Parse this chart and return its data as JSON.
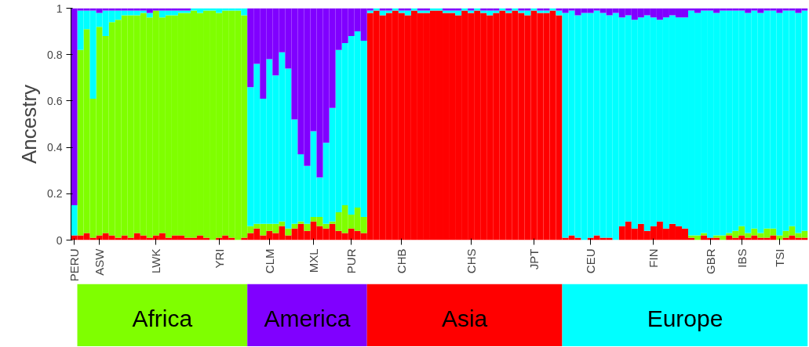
{
  "chart_data": {
    "type": "bar",
    "stacked": true,
    "ylabel": "Ancestry",
    "grid": false,
    "categories": [
      "PERU",
      null,
      null,
      null,
      "ASW",
      null,
      null,
      null,
      null,
      null,
      null,
      null,
      null,
      "LWK",
      null,
      null,
      null,
      null,
      null,
      null,
      null,
      null,
      null,
      "YRI",
      null,
      null,
      null,
      null,
      null,
      null,
      null,
      "CLM",
      null,
      null,
      null,
      null,
      null,
      null,
      "MXL",
      null,
      null,
      null,
      null,
      null,
      "PUR",
      null,
      null,
      null,
      null,
      null,
      null,
      null,
      "CHB",
      null,
      null,
      null,
      null,
      null,
      null,
      null,
      null,
      null,
      null,
      "CHS",
      null,
      null,
      null,
      null,
      null,
      null,
      null,
      null,
      null,
      "JPT",
      null,
      null,
      null,
      null,
      null,
      null,
      null,
      null,
      "CEU",
      null,
      null,
      null,
      null,
      null,
      null,
      null,
      null,
      null,
      "FIN",
      null,
      null,
      null,
      null,
      null,
      null,
      null,
      null,
      "GBR",
      null,
      null,
      null,
      null,
      "IBS",
      null,
      null,
      null,
      null,
      null,
      "TSI",
      null,
      null,
      null,
      null
    ],
    "ylim": [
      0,
      1
    ],
    "yticks": [
      0,
      0.2,
      0.4,
      0.6,
      0.8,
      1
    ],
    "series": [
      {
        "color": "#ff0000",
        "values": [
          0.02,
          0.02,
          0.03,
          0.01,
          0.02,
          0.03,
          0.02,
          0.01,
          0.02,
          0.01,
          0.03,
          0.02,
          0.01,
          0.02,
          0.03,
          0.01,
          0.02,
          0.02,
          0.01,
          0.01,
          0.02,
          0.01,
          0,
          0.01,
          0.02,
          0.01,
          0,
          0.01,
          0.03,
          0.05,
          0.02,
          0.04,
          0.03,
          0.06,
          0.02,
          0.05,
          0.07,
          0.04,
          0.08,
          0.06,
          0.05,
          0.07,
          0.04,
          0.03,
          0.05,
          0.04,
          0.03,
          0.98,
          0.99,
          0.97,
          0.98,
          0.99,
          0.98,
          0.97,
          0.99,
          0.98,
          0.98,
          0.99,
          0.99,
          0.98,
          0.98,
          0.97,
          0.99,
          0.98,
          0.99,
          0.98,
          0.97,
          0.98,
          0.99,
          0.98,
          0.99,
          0.98,
          0.97,
          0.99,
          0.98,
          0.98,
          0.99,
          0.97,
          0.01,
          0.02,
          0.01,
          0,
          0.01,
          0.02,
          0.01,
          0.01,
          0,
          0.06,
          0.08,
          0.05,
          0.07,
          0.04,
          0.06,
          0.08,
          0.05,
          0.07,
          0.06,
          0.05,
          0.01,
          0,
          0.02,
          0.01,
          0.01,
          0,
          0.02,
          0.01,
          0.02,
          0.01,
          0.02,
          0.01,
          0.01,
          0.02,
          0,
          0.01,
          0.02,
          0.01,
          0.01
        ]
      },
      {
        "color": "#7fff00",
        "values": [
          0,
          0.8,
          0.88,
          0.6,
          0.9,
          0.85,
          0.92,
          0.94,
          0.95,
          0.96,
          0.94,
          0.96,
          0.95,
          0.97,
          0.93,
          0.96,
          0.95,
          0.96,
          0.97,
          0.98,
          0.96,
          0.98,
          0.99,
          0.97,
          0.97,
          0.98,
          0.99,
          0.96,
          0.03,
          0.02,
          0.05,
          0.03,
          0.04,
          0.02,
          0.03,
          0.02,
          0.01,
          0.03,
          0.02,
          0.04,
          0.02,
          0.01,
          0.08,
          0.12,
          0.06,
          0.1,
          0.07,
          0,
          0,
          0,
          0,
          0,
          0,
          0,
          0,
          0,
          0,
          0,
          0,
          0,
          0,
          0,
          0,
          0,
          0,
          0,
          0,
          0,
          0,
          0,
          0,
          0,
          0,
          0,
          0,
          0,
          0,
          0,
          0,
          0,
          0,
          0,
          0,
          0,
          0,
          0,
          0,
          0,
          0,
          0,
          0,
          0,
          0,
          0,
          0,
          0,
          0,
          0,
          0.01,
          0.02,
          0.01,
          0,
          0.01,
          0.02,
          0.01,
          0.03,
          0.04,
          0.02,
          0.03,
          0.02,
          0.04,
          0.03,
          0.02,
          0.03,
          0.04,
          0.02,
          0.03
        ]
      },
      {
        "color": "#00ffff",
        "values": [
          0.13,
          0.17,
          0.08,
          0.38,
          0.06,
          0.11,
          0.05,
          0.04,
          0.02,
          0.02,
          0.02,
          0.01,
          0.02,
          0,
          0.03,
          0.02,
          0.02,
          0.01,
          0.01,
          0.01,
          0.02,
          0.01,
          0.01,
          0.02,
          0.01,
          0.01,
          0.01,
          0.03,
          0.6,
          0.69,
          0.54,
          0.71,
          0.64,
          0.73,
          0.69,
          0.45,
          0.29,
          0.25,
          0.37,
          0.17,
          0.35,
          0.49,
          0.7,
          0.7,
          0.77,
          0.76,
          0.76,
          0.01,
          0.01,
          0.02,
          0.01,
          0.01,
          0.01,
          0.02,
          0.01,
          0.01,
          0.01,
          0.01,
          0.01,
          0.01,
          0.01,
          0.02,
          0.01,
          0.01,
          0.01,
          0.01,
          0.02,
          0.01,
          0.01,
          0.01,
          0.01,
          0.01,
          0.02,
          0.01,
          0.01,
          0.01,
          0.01,
          0.02,
          0.97,
          0.97,
          0.96,
          0.98,
          0.97,
          0.97,
          0.97,
          0.96,
          0.98,
          0.9,
          0.89,
          0.9,
          0.89,
          0.93,
          0.9,
          0.87,
          0.91,
          0.9,
          0.9,
          0.91,
          0.97,
          0.96,
          0.96,
          0.98,
          0.96,
          0.97,
          0.96,
          0.95,
          0.93,
          0.95,
          0.94,
          0.95,
          0.94,
          0.94,
          0.96,
          0.95,
          0.93,
          0.95,
          0.95
        ]
      },
      {
        "color": "#8000ff",
        "values": [
          0.85,
          0.01,
          0.01,
          0.01,
          0.02,
          0.01,
          0.01,
          0.01,
          0.01,
          0.01,
          0.01,
          0.01,
          0.02,
          0.01,
          0.01,
          0.01,
          0.01,
          0.01,
          0.01,
          0,
          0,
          0,
          0,
          0,
          0,
          0,
          0,
          0,
          0.34,
          0.24,
          0.39,
          0.22,
          0.29,
          0.19,
          0.26,
          0.48,
          0.63,
          0.68,
          0.53,
          0.73,
          0.58,
          0.43,
          0.18,
          0.15,
          0.12,
          0.1,
          0.14,
          0.01,
          0,
          0.01,
          0.01,
          0,
          0.01,
          0.01,
          0,
          0.01,
          0.01,
          0,
          0,
          0.01,
          0.01,
          0.01,
          0,
          0.01,
          0,
          0.01,
          0.01,
          0.01,
          0,
          0.01,
          0,
          0.01,
          0.01,
          0,
          0.01,
          0.01,
          0,
          0.01,
          0.02,
          0.01,
          0.03,
          0.02,
          0.02,
          0.01,
          0.02,
          0.03,
          0.02,
          0.04,
          0.03,
          0.05,
          0.04,
          0.03,
          0.04,
          0.05,
          0.04,
          0.03,
          0.04,
          0.04,
          0.01,
          0.02,
          0.01,
          0.01,
          0.02,
          0.01,
          0.01,
          0.01,
          0.01,
          0.02,
          0.01,
          0.02,
          0.01,
          0.01,
          0.02,
          0.01,
          0.01,
          0.02,
          0.01
        ]
      }
    ],
    "annotations": [
      "Africa",
      "America",
      "Asia",
      "Europe"
    ]
  }
}
